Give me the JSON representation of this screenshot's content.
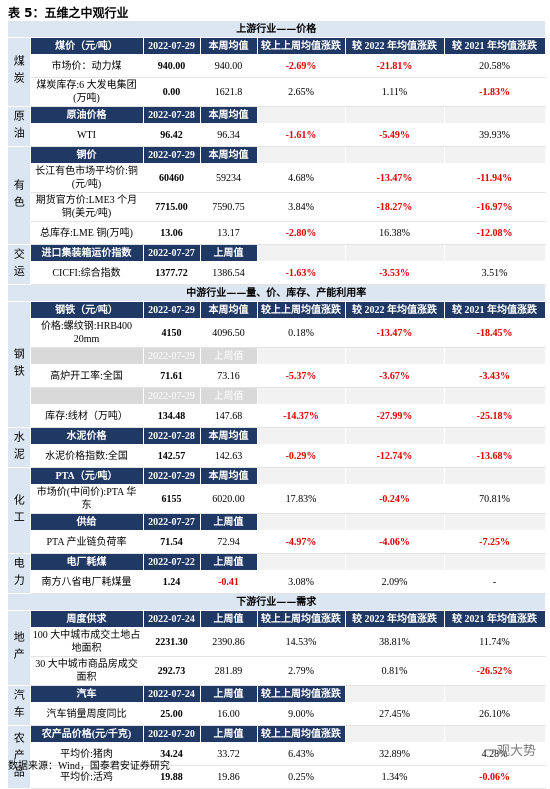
{
  "title": "表 5：五维之中观行业",
  "sections": [
    {
      "title": "上游行业——价格",
      "groups": [
        {
          "side": "煤炭",
          "blocks": [
            {
              "header": [
                "煤价（元/吨）",
                "2022-07-29",
                "本周均值",
                "较上上周均值涨跌",
                "较 2022 年均值涨跌",
                "较 2021 年均值涨跌"
              ],
              "rows": [
                [
                  "市场价：动力煤",
                  "940.00",
                  "940.00",
                  "-2.69%",
                  "-21.81%",
                  "20.58%"
                ],
                [
                  "煤炭库存:6 大发电集团(万吨)",
                  "0.00",
                  "1621.8",
                  "2.65%",
                  "1.11%",
                  "-1.83%"
                ]
              ]
            }
          ]
        },
        {
          "side": "原油",
          "blocks": [
            {
              "header": [
                "原油价格",
                "2022-07-28",
                "本周均值"
              ],
              "rows": [
                [
                  "WTI",
                  "96.42",
                  "96.34",
                  "-1.61%",
                  "-5.49%",
                  "39.93%"
                ]
              ]
            }
          ]
        },
        {
          "side": "有色",
          "blocks": [
            {
              "header": [
                "铜价",
                "2022-07-29",
                "本周均值"
              ],
              "rows": [
                [
                  "长江有色市场平均价:铜(元/吨)",
                  "60460",
                  "59234",
                  "4.68%",
                  "-13.47%",
                  "-11.94%"
                ],
                [
                  "期货官方价:LME3 个月铜(美元/吨)",
                  "7715.00",
                  "7590.75",
                  "3.84%",
                  "-18.27%",
                  "-16.97%"
                ],
                [
                  "总库存:LME 铜(万吨)",
                  "13.06",
                  "13.17",
                  "-2.80%",
                  "16.38%",
                  "-12.08%"
                ]
              ]
            }
          ]
        },
        {
          "side": "交运",
          "blocks": [
            {
              "header": [
                "进口集装箱运价指数",
                "2022-07-27",
                "上周值"
              ],
              "rows": [
                [
                  "CICFI:综合指数",
                  "1377.72",
                  "1386.54",
                  "-1.63%",
                  "-3.53%",
                  "3.51%"
                ]
              ]
            }
          ]
        }
      ]
    },
    {
      "title": "中游行业——量、价、库存、产能利用率",
      "groups": [
        {
          "side": "钢铁",
          "blocks": [
            {
              "header": [
                "钢铁（元/吨）",
                "2022-07-29",
                "本周均值",
                "较上上周均值涨跌",
                "较 2022 年均值涨跌",
                "较 2021 年均值涨跌"
              ],
              "rows": [
                [
                  "价格:螺纹钢:HRB400 20mm",
                  "4150",
                  "4096.50",
                  "0.18%",
                  "-13.47%",
                  "-18.45%"
                ]
              ]
            },
            {
              "header": [
                null,
                "2022-07-29",
                "上周值"
              ],
              "rows": [
                [
                  "高炉开工率:全国",
                  "71.61",
                  "73.16",
                  "-5.37%",
                  "-3.67%",
                  "-3.43%"
                ]
              ]
            },
            {
              "header": [
                null,
                "2022-07-29",
                "上周值"
              ],
              "rows": [
                [
                  "库存:线材（万吨）",
                  "134.48",
                  "147.68",
                  "-14.37%",
                  "-27.99%",
                  "-25.18%"
                ]
              ]
            }
          ]
        },
        {
          "side": "水泥",
          "blocks": [
            {
              "header": [
                "水泥价格",
                "2022-07-28",
                "本周均值"
              ],
              "rows": [
                [
                  "水泥价格指数:全国",
                  "142.57",
                  "142.63",
                  "-0.29%",
                  "-12.74%",
                  "-13.68%"
                ]
              ]
            }
          ]
        },
        {
          "side": "化工",
          "blocks": [
            {
              "header": [
                "PTA（元/吨）",
                "2022-07-29",
                "本周均值"
              ],
              "rows": [
                [
                  "市场价(中间价):PTA 华东",
                  "6155",
                  "6020.00",
                  "17.83%",
                  "-0.24%",
                  "70.81%"
                ]
              ]
            },
            {
              "header": [
                "供给",
                "2022-07-27",
                "上周值"
              ],
              "rows": [
                [
                  "PTA 产业链负荷率",
                  "71.54",
                  "72.94",
                  "-4.97%",
                  "-4.06%",
                  "-7.25%"
                ]
              ]
            }
          ]
        },
        {
          "side": "电力",
          "blocks": [
            {
              "header": [
                "电厂耗煤",
                "2022-07-22",
                "上周值"
              ],
              "rows": [
                [
                  "南方八省电厂耗煤量",
                  "1.24",
                  "-0.41",
                  "3.08%",
                  "2.09%",
                  "-"
                ]
              ]
            }
          ]
        }
      ]
    },
    {
      "title": "下游行业——需求",
      "groups": [
        {
          "side": "地产",
          "blocks": [
            {
              "header": [
                "周度供求",
                "2022-07-24",
                "上周值",
                "较上上周均值涨跌",
                "较 2022 年均值涨跌",
                "较 2021 年均值涨跌"
              ],
              "rows": [
                [
                  "100 大中城市成交土地占地面积",
                  "2231.30",
                  "2390.86",
                  "14.53%",
                  "38.81%",
                  "11.74%"
                ],
                [
                  "30 大中城市商品房成交面积",
                  "292.73",
                  "281.89",
                  "2.79%",
                  "0.81%",
                  "-26.52%"
                ]
              ]
            }
          ]
        },
        {
          "side": "汽车",
          "blocks": [
            {
              "header": [
                "汽车",
                "2022-07-24",
                "上周值",
                "较上上周均值涨跌"
              ],
              "rows": [
                [
                  "汽车销量周度同比",
                  "25.00",
                  "16.00",
                  "9.00%",
                  "27.45%",
                  "26.10%"
                ]
              ]
            }
          ]
        },
        {
          "side": "农产品",
          "blocks": [
            {
              "header": [
                "农产品价格(元/千克)",
                "2022-07-20",
                "上周值",
                "较上上周均值涨跌"
              ],
              "rows": [
                [
                  "平均价:猪肉",
                  "34.24",
                  "33.72",
                  "6.43%",
                  "32.89%",
                  "4.28%"
                ],
                [
                  "平均价:活鸡",
                  "19.88",
                  "19.86",
                  "0.25%",
                  "1.34%",
                  "-0.06%"
                ]
              ]
            }
          ]
        }
      ]
    }
  ],
  "source": "数据来源：Wind，国泰君安证券研究",
  "watermark": "一观大势"
}
